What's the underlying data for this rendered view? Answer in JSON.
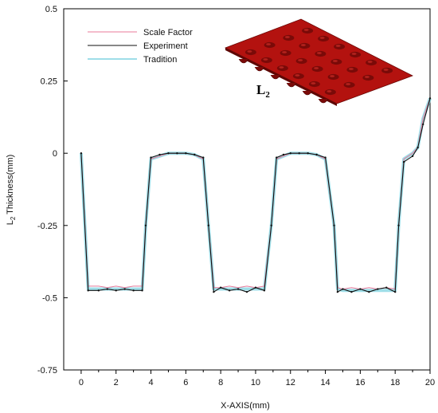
{
  "chart_data": {
    "type": "line",
    "xlabel": "X-AXIS(mm)",
    "ylabel_main": "L",
    "ylabel_sub": "2",
    "ylabel_rest": " Thickness(mm)",
    "xlim": [
      -1,
      20
    ],
    "ylim": [
      -0.75,
      0.5
    ],
    "x_ticks": [
      0,
      2,
      4,
      6,
      8,
      10,
      12,
      14,
      16,
      18,
      20
    ],
    "y_ticks": [
      0.5,
      0.25,
      0,
      -0.25,
      -0.5,
      -0.75
    ],
    "y_tick_labels": [
      "0.5",
      "0.25",
      "0",
      "-0.25",
      "-0.5",
      "-0.75"
    ],
    "legend_position": "top-left",
    "inset_label_main": "L",
    "inset_label_sub": "2",
    "series": [
      {
        "name": "Scale Factor",
        "color": "#e87a9a",
        "x": [
          0,
          0.4,
          1,
          1.5,
          2,
          2.5,
          3,
          3.5,
          3.7,
          4,
          4.5,
          5,
          5.5,
          6,
          6.5,
          7,
          7.3,
          7.6,
          8,
          8.5,
          9,
          9.5,
          10,
          10.5,
          10.9,
          11.2,
          11.6,
          12,
          12.5,
          13,
          13.5,
          14,
          14.5,
          14.7,
          15,
          15.5,
          16,
          16.5,
          17,
          17.5,
          18,
          18.2,
          18.5,
          19,
          19.3,
          19.6,
          20
        ],
        "y": [
          0,
          -0.46,
          -0.46,
          -0.465,
          -0.46,
          -0.465,
          -0.46,
          -0.46,
          -0.25,
          -0.02,
          -0.01,
          0,
          0,
          0,
          -0.005,
          -0.02,
          -0.25,
          -0.465,
          -0.465,
          -0.46,
          -0.465,
          -0.46,
          -0.465,
          -0.46,
          -0.25,
          -0.02,
          -0.01,
          0,
          0,
          0,
          -0.005,
          -0.02,
          -0.25,
          -0.465,
          -0.47,
          -0.465,
          -0.47,
          -0.465,
          -0.47,
          -0.465,
          -0.47,
          -0.25,
          -0.02,
          0,
          0.02,
          0.12,
          0.19
        ]
      },
      {
        "name": "Experiment",
        "color": "#111111",
        "x": [
          0,
          0.4,
          1,
          1.5,
          2,
          2.5,
          3,
          3.5,
          3.7,
          4,
          4.5,
          5,
          5.5,
          6,
          6.5,
          7,
          7.3,
          7.6,
          8,
          8.5,
          9,
          9.5,
          10,
          10.5,
          10.9,
          11.2,
          11.6,
          12,
          12.5,
          13,
          13.5,
          14,
          14.5,
          14.7,
          15,
          15.5,
          16,
          16.5,
          17,
          17.5,
          18,
          18.2,
          18.5,
          19,
          19.3,
          19.6,
          20
        ],
        "y": [
          0,
          -0.475,
          -0.475,
          -0.47,
          -0.475,
          -0.47,
          -0.475,
          -0.475,
          -0.25,
          -0.015,
          -0.005,
          0,
          0,
          0,
          -0.005,
          -0.015,
          -0.25,
          -0.48,
          -0.465,
          -0.475,
          -0.47,
          -0.48,
          -0.465,
          -0.475,
          -0.25,
          -0.015,
          -0.005,
          0,
          0,
          0,
          -0.005,
          -0.015,
          -0.25,
          -0.48,
          -0.47,
          -0.48,
          -0.47,
          -0.48,
          -0.47,
          -0.465,
          -0.48,
          -0.25,
          -0.03,
          -0.01,
          0.02,
          0.1,
          0.19
        ]
      },
      {
        "name": "Tradition",
        "color": "#7fd3e0",
        "x": [
          0,
          0.4,
          1,
          1.5,
          2,
          2.5,
          3,
          3.5,
          3.7,
          4,
          4.5,
          5,
          5.5,
          6,
          6.5,
          7,
          7.3,
          7.6,
          8,
          8.5,
          9,
          9.5,
          10,
          10.5,
          10.9,
          11.2,
          11.6,
          12,
          12.5,
          13,
          13.5,
          14,
          14.5,
          14.7,
          15,
          15.5,
          16,
          16.5,
          17,
          17.5,
          18,
          18.2,
          18.5,
          19,
          19.3,
          19.6,
          20
        ],
        "y": [
          0,
          -0.47,
          -0.47,
          -0.47,
          -0.47,
          -0.47,
          -0.47,
          -0.47,
          -0.25,
          -0.02,
          -0.01,
          0,
          0,
          0,
          -0.005,
          -0.02,
          -0.25,
          -0.47,
          -0.47,
          -0.47,
          -0.47,
          -0.47,
          -0.47,
          -0.47,
          -0.25,
          -0.02,
          -0.01,
          0,
          0,
          0,
          -0.005,
          -0.02,
          -0.25,
          -0.47,
          -0.475,
          -0.475,
          -0.475,
          -0.475,
          -0.475,
          -0.475,
          -0.475,
          -0.25,
          -0.02,
          0,
          0.02,
          0.12,
          0.19
        ]
      }
    ]
  },
  "inset": {
    "plate_color": "#b3120f",
    "dimple_color": "#7a0a08"
  }
}
